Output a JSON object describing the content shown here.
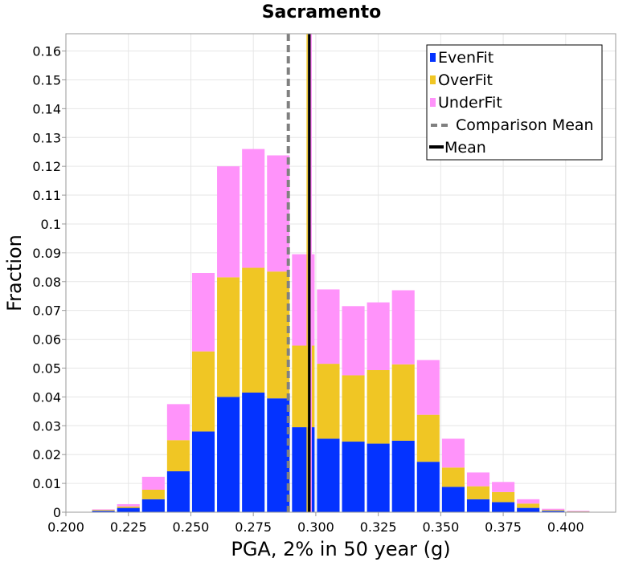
{
  "chart_data": {
    "type": "bar",
    "stacked": true,
    "title": "Sacramento",
    "xlabel": "PGA, 2% in 50 year (g)",
    "ylabel": "Fraction",
    "xlim": [
      0.2,
      0.42
    ],
    "ylim": [
      0,
      0.166
    ],
    "bin_width": 0.01,
    "x_ticks": [
      "0.200",
      "0.225",
      "0.250",
      "0.275",
      "0.300",
      "0.325",
      "0.350",
      "0.375",
      "0.400"
    ],
    "y_ticks": [
      "0",
      "0.01",
      "0.02",
      "0.03",
      "0.04",
      "0.05",
      "0.06",
      "0.07",
      "0.08",
      "0.09",
      "0.1",
      "0.11",
      "0.12",
      "0.13",
      "0.14",
      "0.15",
      "0.16"
    ],
    "grid": true,
    "legend_position": "top-right",
    "bin_centers": [
      0.205,
      0.215,
      0.225,
      0.235,
      0.245,
      0.255,
      0.265,
      0.275,
      0.285,
      0.295,
      0.305,
      0.315,
      0.325,
      0.335,
      0.345,
      0.355,
      0.365,
      0.375,
      0.385,
      0.395,
      0.405
    ],
    "series": [
      {
        "name": "EvenFit",
        "color": "#0433ff",
        "values": [
          0,
          0.0005,
          0.0015,
          0.0045,
          0.0142,
          0.028,
          0.04,
          0.0415,
          0.0395,
          0.0295,
          0.0255,
          0.0245,
          0.0238,
          0.0248,
          0.0175,
          0.0088,
          0.0045,
          0.0035,
          0.0015,
          0.0005,
          0.0002
        ]
      },
      {
        "name": "OverFit",
        "color": "#f0c624",
        "values": [
          0,
          0.0003,
          0.0005,
          0.0033,
          0.0108,
          0.0278,
          0.0415,
          0.0433,
          0.044,
          0.0283,
          0.026,
          0.023,
          0.0255,
          0.0265,
          0.0163,
          0.0067,
          0.0045,
          0.0035,
          0.0015,
          0.0003,
          0.0001
        ]
      },
      {
        "name": "UnderFit",
        "color": "#ff93fa",
        "values": [
          0,
          0.0002,
          0.0008,
          0.0045,
          0.0125,
          0.0272,
          0.0385,
          0.0412,
          0.0403,
          0.0317,
          0.0258,
          0.024,
          0.0235,
          0.0257,
          0.019,
          0.01,
          0.0048,
          0.0035,
          0.0015,
          0.0004,
          0.0002
        ]
      }
    ],
    "vlines": [
      {
        "name": "Comparison Mean",
        "x": 0.289,
        "style": "dashed",
        "color": "#808080"
      },
      {
        "name": "Mean",
        "x": 0.2975,
        "style": "solid",
        "color": "#000000"
      }
    ],
    "mean_markers": [
      {
        "x": 0.2975,
        "color": "#f0c624"
      },
      {
        "x": 0.2972,
        "color": "#ff93fa"
      }
    ]
  }
}
